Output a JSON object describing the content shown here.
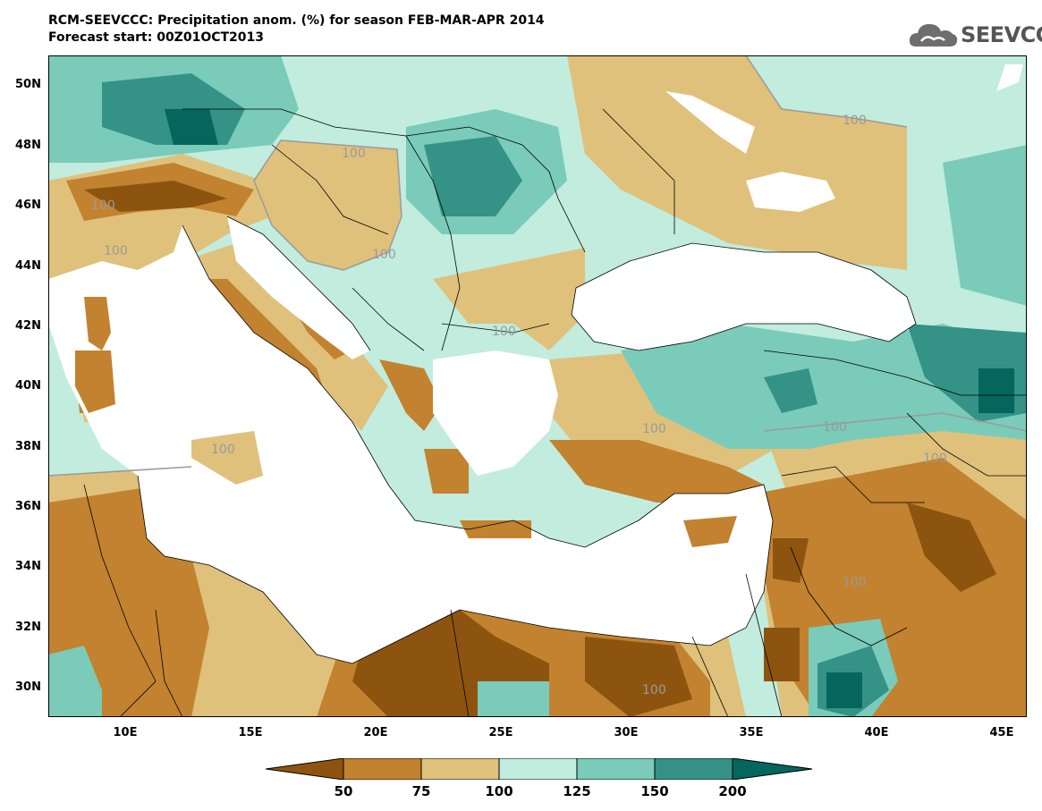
{
  "header": {
    "title_line1": "RCM-SEEVCCC: Precipitation anom. (%) for season FEB-MAR-APR 2014",
    "title_line2": "Forecast start: 00Z01OCT2013",
    "logo_text": "SEEVCCC"
  },
  "map": {
    "lat_labels": [
      "50N",
      "48N",
      "46N",
      "44N",
      "42N",
      "40N",
      "38N",
      "36N",
      "34N",
      "32N",
      "30N"
    ],
    "lon_labels": [
      "10E",
      "15E",
      "20E",
      "25E",
      "30E",
      "35E",
      "40E",
      "45E"
    ],
    "contour_label": "100",
    "land_default_color": "#c1ecde",
    "sea_color": "#ffffff"
  },
  "legend": {
    "colors": [
      "#8d540f",
      "#c2822f",
      "#dfc17c",
      "#c1ecde",
      "#7acbb9",
      "#349287",
      "#04665d"
    ],
    "ticks": [
      "50",
      "75",
      "100",
      "125",
      "150",
      "200"
    ]
  }
}
